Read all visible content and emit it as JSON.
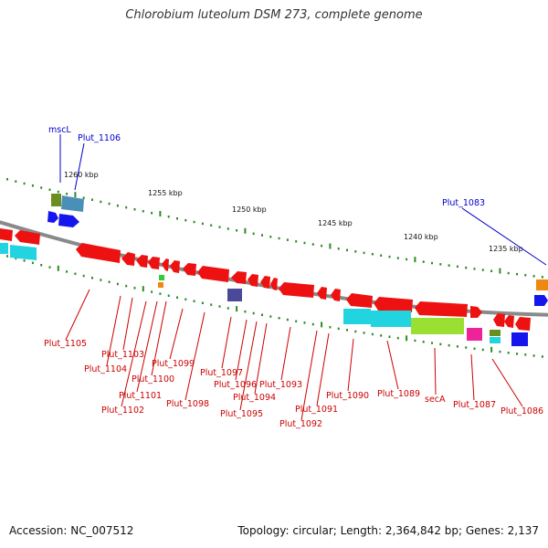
{
  "title": "Chlorobium luteolum DSM 273, complete genome",
  "footer": {
    "accession": "Accession: NC_007512",
    "topology": "Topology: circular; Length: 2,364,842 bp; Genes: 2,137"
  },
  "colors": {
    "backbone": "#8a8a8a",
    "tick": "#2e8b22",
    "forward_label": "#0000cc",
    "reverse_label": "#cc0000",
    "cds_red": "#ee1111",
    "cds_cyan": "#22d4e0",
    "cds_blue": "#1515ee",
    "cds_green": "#99e033",
    "cds_magenta": "#ee2299",
    "cds_navy": "#4a4a99",
    "cds_orange": "#ee8811",
    "cds_olive": "#6b8e23",
    "cds_steel": "#4a8fb8"
  },
  "scale_labels": [
    "1260 kbp",
    "1255 kbp",
    "1250 kbp",
    "1245 kbp",
    "1240 kbp",
    "1235 kbp"
  ],
  "forward_labels": [
    "mscL",
    "Plut_1106",
    "Plut_1083"
  ],
  "reverse_labels": [
    "Plut_1105",
    "Plut_1103",
    "Plut_1104",
    "Plut_1101",
    "Plut_1102",
    "Plut_1100",
    "Plut_1099",
    "Plut_1098",
    "Plut_1097",
    "Plut_1096",
    "Plut_1095",
    "Plut_1094",
    "Plut_1093",
    "Plut_1092",
    "Plut_1091",
    "Plut_1090",
    "Plut_1089",
    "secA",
    "Plut_1087",
    "Plut_1086"
  ]
}
